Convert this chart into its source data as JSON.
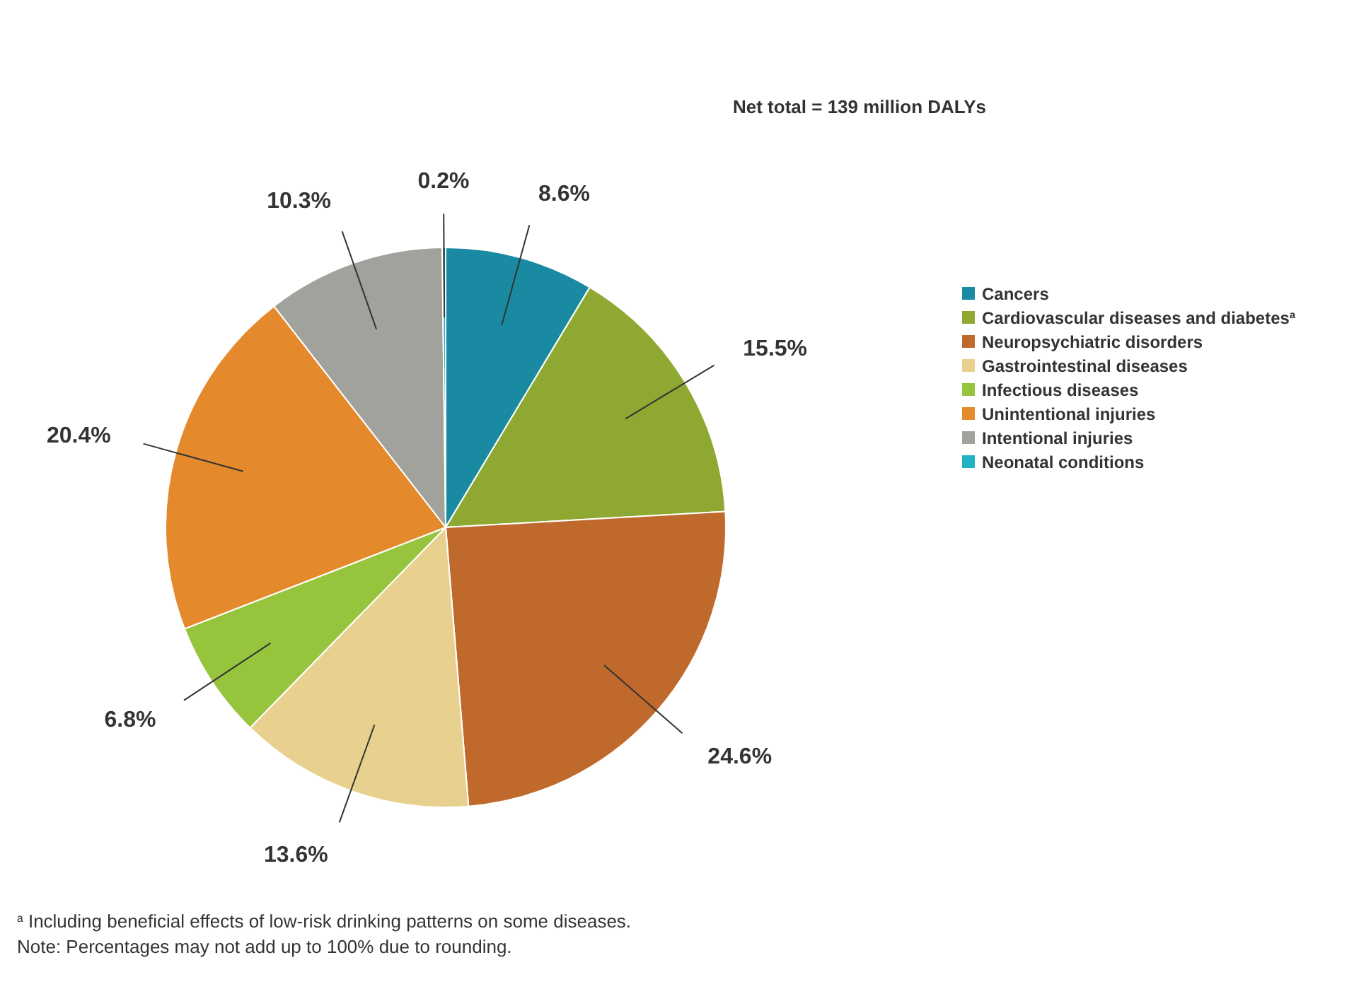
{
  "chart_data": {
    "type": "pie",
    "title": "Net total = 139 million DALYs",
    "categories": [
      "Cancers",
      "Cardiovascular diseases and diabetes$^{a}$",
      "Neuropsychiatric disorders",
      "Gastrointestinal diseases",
      "Infectious diseases",
      "Unintentional injuries",
      "Intentional injuries",
      "Neonatal conditions"
    ],
    "values": [
      8.6,
      15.5,
      24.6,
      13.6,
      6.8,
      20.4,
      10.3,
      0.2
    ],
    "value_labels": [
      "8.6%",
      "15.5%",
      "24.6%",
      "13.6%",
      "6.8%",
      "20.4%",
      "10.3%",
      "0.2%"
    ],
    "colors": [
      "#1a8aa2",
      "#8fa832",
      "#c0692c",
      "#e8d08e",
      "#96c43c",
      "#e58a2c",
      "#a2a29c",
      "#22b2c4"
    ],
    "legend": "right",
    "annotations": [
      "$^{a}$ Including beneficial effects of low-risk drinking patterns on some diseases.",
      "Note: Percentages may not add up to 100% due to rounding."
    ]
  }
}
